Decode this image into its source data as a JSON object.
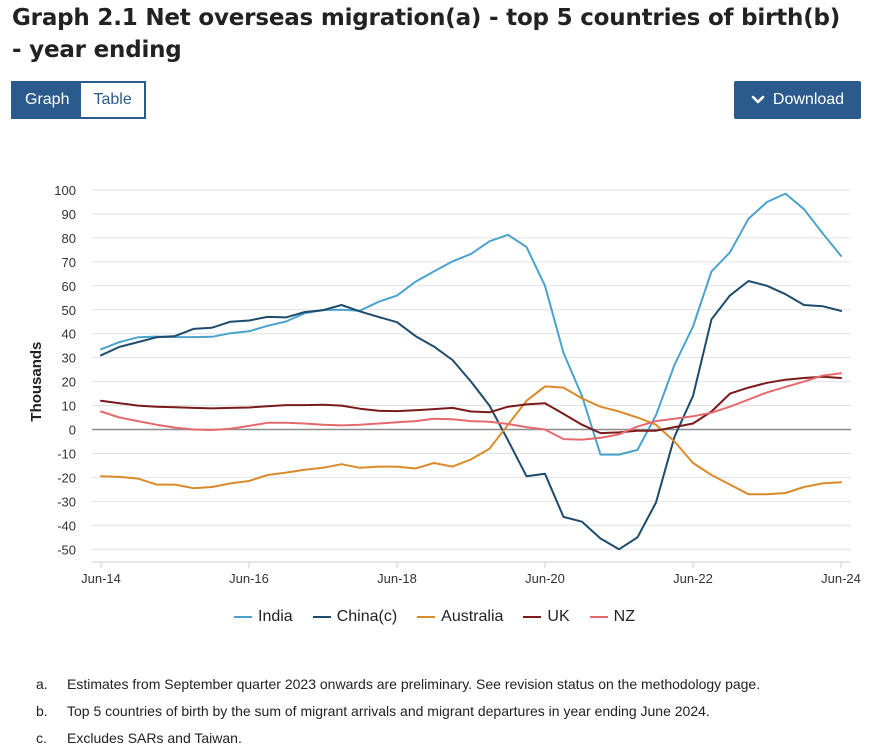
{
  "title": "Graph 2.1 Net overseas migration(a) - top 5 countries of birth(b) - year ending",
  "tabs": [
    {
      "label": "Graph",
      "active": true
    },
    {
      "label": "Table",
      "active": false
    }
  ],
  "download_label": "Download",
  "chart_data": {
    "type": "line",
    "title": "Graph 2.1 Net overseas migration(a) - top 5 countries of birth(b) - year ending",
    "ylabel": "Thousands",
    "xlabel": "",
    "ylim": [
      -55,
      100
    ],
    "yticks": [
      100,
      90,
      80,
      70,
      60,
      50,
      40,
      30,
      20,
      10,
      0,
      -10,
      -20,
      -30,
      -40,
      -50
    ],
    "x_tick_labels": [
      "Jun-14",
      "Jun-16",
      "Jun-18",
      "Jun-20",
      "Jun-22",
      "Jun-24"
    ],
    "grid": true,
    "legend_position": "bottom",
    "x_start": "Jun-14",
    "x_frequency": "quarterly",
    "series": [
      {
        "name": "India",
        "color": "#4ba3cc",
        "values": [
          33.5,
          36.5,
          38.5,
          38.8,
          38.6,
          38.6,
          38.7,
          40.2,
          41,
          43.3,
          45.1,
          48.5,
          49.9,
          50,
          49.6,
          53.3,
          55.9,
          61.7,
          66,
          70.2,
          73.3,
          78.6,
          81.3,
          76.2,
          60,
          32,
          14,
          -10.5,
          -10.5,
          -8.5,
          6,
          27,
          43,
          66,
          74,
          88,
          95,
          98.5,
          92,
          82,
          72.5
        ]
      },
      {
        "name": "China(c)",
        "color": "#1e4b6b",
        "values": [
          31,
          34.5,
          36.5,
          38.5,
          39,
          42,
          42.5,
          45,
          45.5,
          47,
          46.8,
          49,
          49.8,
          52,
          49.3,
          47,
          44.8,
          39,
          34.6,
          29,
          20,
          10,
          -4.5,
          -19.5,
          -18.5,
          -36.5,
          -38.5,
          -45.5,
          -50,
          -45,
          -30.5,
          -3,
          14,
          46,
          56,
          62,
          60,
          56.5,
          52,
          51.5,
          49.5
        ]
      },
      {
        "name": "Australia",
        "color": "#d98a2b",
        "values": [
          -19.5,
          -19.8,
          -20.5,
          -23,
          -23,
          -24.5,
          -24,
          -22.5,
          -21.5,
          -19,
          -18,
          -16.8,
          -16,
          -14.5,
          -16,
          -15.5,
          -15.5,
          -16.3,
          -14,
          -15.5,
          -12.5,
          -8,
          2,
          12,
          18,
          17.5,
          13,
          9.5,
          7.5,
          5,
          2,
          -5,
          -14,
          -19,
          -23,
          -27,
          -27,
          -26.5,
          -24,
          -22.5,
          -22
        ]
      },
      {
        "name": "UK",
        "color": "#7a1a1a",
        "values": [
          12,
          11,
          10,
          9.5,
          9.3,
          9,
          8.8,
          9,
          9.2,
          9.7,
          10.2,
          10.2,
          10.3,
          10,
          8.7,
          7.8,
          7.7,
          8,
          8.5,
          9,
          7.5,
          7.2,
          9.5,
          10.5,
          11,
          6.5,
          2,
          -1.5,
          -1.2,
          -0.5,
          -0.5,
          1,
          2.5,
          7.5,
          15,
          17.5,
          19.5,
          20.8,
          21.5,
          22,
          21.5
        ]
      },
      {
        "name": "NZ",
        "color": "#e46a6e",
        "values": [
          7.5,
          5,
          3.5,
          2,
          0.8,
          0,
          -0.2,
          0.3,
          1.5,
          2.8,
          2.8,
          2.5,
          2,
          1.7,
          2,
          2.5,
          3,
          3.5,
          4.5,
          4.3,
          3.5,
          3.2,
          2.3,
          1,
          0,
          -4,
          -4.2,
          -3.5,
          -2,
          1.2,
          3.5,
          4.5,
          5.5,
          7,
          9.5,
          12.5,
          15.5,
          17.8,
          20,
          22.5,
          23.5
        ]
      }
    ]
  },
  "footnotes": [
    {
      "letter": "a.",
      "text": "Estimates from September quarter 2023 onwards are preliminary. See revision status on the methodology page."
    },
    {
      "letter": "b.",
      "text": "Top 5 countries of birth by the sum of migrant arrivals and migrant departures in year ending June 2024."
    },
    {
      "letter": "c.",
      "text": "Excludes SARs and Taiwan."
    }
  ]
}
